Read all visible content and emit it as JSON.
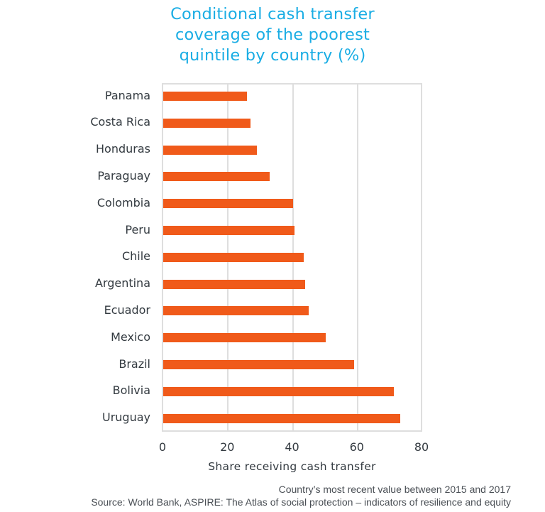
{
  "colors": {
    "title": "#1AADE4",
    "bar": "#F05A1A",
    "grid": "#DEDEDE",
    "text": "#333A40"
  },
  "title_lines": [
    "Conditional cash transfer",
    "coverage of the poorest",
    "quintile by country (%)"
  ],
  "footnote": {
    "note": "Country’s most recent value between 2015 and 2017",
    "source": "Source: World Bank, ASPIRE: The Atlas of social protection – indicators of resilience and equity"
  },
  "chart_data": {
    "type": "bar",
    "orientation": "horizontal",
    "title": "Conditional cash transfer coverage of the poorest quintile by country (%)",
    "xlabel": "Share receiving cash transfer",
    "ylabel": "",
    "xlim": [
      0,
      80
    ],
    "xticks": [
      0,
      20,
      40,
      60,
      80
    ],
    "grid": "vertical",
    "legend": null,
    "categories": [
      "Panama",
      "Costa Rica",
      "Honduras",
      "Paraguay",
      "Colombia",
      "Peru",
      "Chile",
      "Argentina",
      "Ecuador",
      "Mexico",
      "Brazil",
      "Bolivia",
      "Uruguay"
    ],
    "values": [
      25.9,
      26.9,
      29.0,
      32.8,
      40.2,
      40.5,
      43.5,
      43.9,
      44.9,
      50.2,
      59.0,
      71.3,
      73.2
    ],
    "annotations": [
      "Country’s most recent value between 2015 and 2017",
      "Source: World Bank, ASPIRE: The Atlas of social protection – indicators of resilience and equity"
    ]
  }
}
